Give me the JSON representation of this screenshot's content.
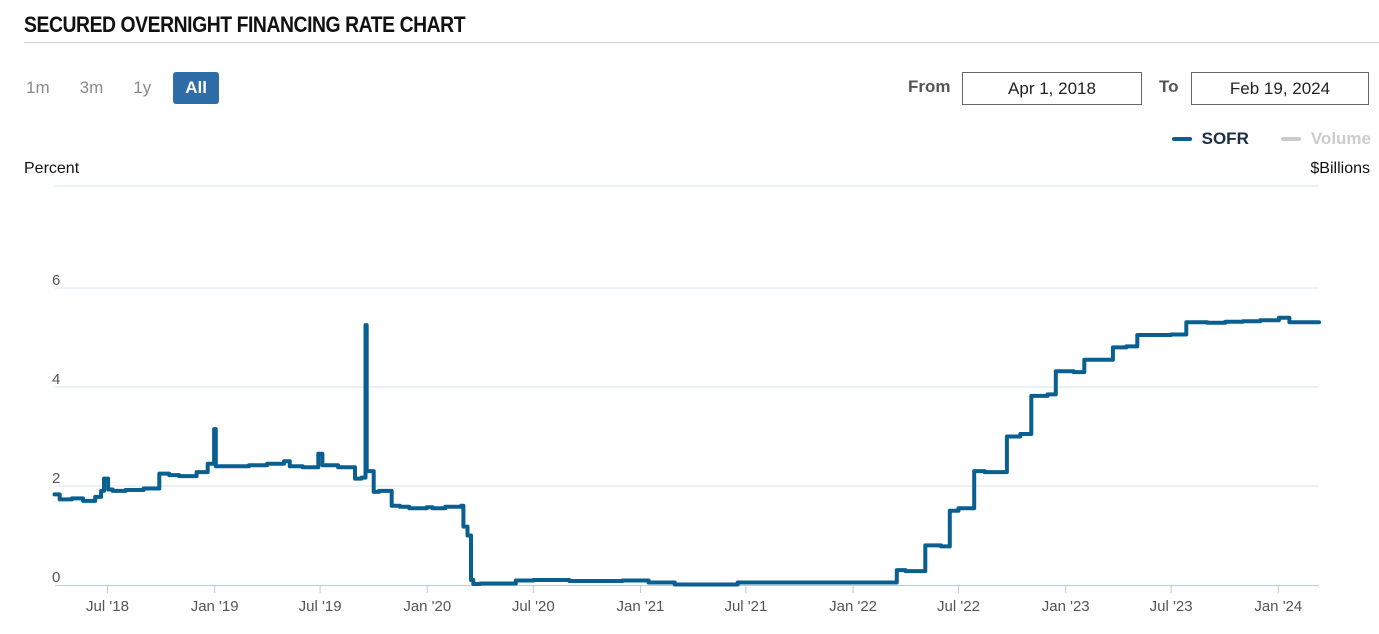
{
  "header": {
    "title": "SECURED OVERNIGHT FINANCING RATE CHART"
  },
  "range_selector": [
    {
      "label": "1m",
      "active": false
    },
    {
      "label": "3m",
      "active": false
    },
    {
      "label": "1y",
      "active": false
    },
    {
      "label": "All",
      "active": true
    }
  ],
  "date_range": {
    "from_label": "From",
    "from_value": "Apr 1, 2018",
    "to_label": "To",
    "to_value": "Feb 19, 2024"
  },
  "legend": [
    {
      "name": "SOFR",
      "color": "#0a5f91",
      "active": true
    },
    {
      "name": "Volume",
      "color": "#cccccc",
      "active": false
    }
  ],
  "colors": {
    "accent": "#2f6da8",
    "line": "#0a5f91",
    "grid": "#d6e3ef"
  },
  "chart_data": {
    "type": "line",
    "ylabel": "Percent",
    "y2label": "$Billions",
    "ylim": [
      0,
      8
    ],
    "yticks": [
      "0",
      "2",
      "4",
      "6"
    ],
    "xlabels": [
      "Jul '18",
      "Jan '19",
      "Jul '19",
      "Jan '20",
      "Jul '20",
      "Jan '21",
      "Jul '21",
      "Jan '22",
      "Jul '22",
      "Jan '23",
      "Jul '23",
      "Jan '24"
    ],
    "grid": true,
    "series": [
      {
        "name": "SOFR",
        "x": [
          "2018-04-01",
          "2018-04-10",
          "2018-05-01",
          "2018-05-20",
          "2018-06-10",
          "2018-06-20",
          "2018-06-25",
          "2018-07-02",
          "2018-07-10",
          "2018-08-01",
          "2018-09-01",
          "2018-09-28",
          "2018-10-15",
          "2018-11-01",
          "2018-12-01",
          "2018-12-20",
          "2018-12-31",
          "2019-01-03",
          "2019-02-01",
          "2019-03-01",
          "2019-04-01",
          "2019-04-30",
          "2019-05-10",
          "2019-06-01",
          "2019-06-28",
          "2019-07-05",
          "2019-08-01",
          "2019-08-30",
          "2019-09-10",
          "2019-09-17",
          "2019-09-19",
          "2019-10-01",
          "2019-10-10",
          "2019-11-01",
          "2019-11-15",
          "2019-12-01",
          "2019-12-31",
          "2020-01-10",
          "2020-02-01",
          "2020-02-28",
          "2020-03-03",
          "2020-03-10",
          "2020-03-16",
          "2020-03-20",
          "2020-04-01",
          "2020-06-01",
          "2020-07-01",
          "2020-09-01",
          "2020-12-01",
          "2021-01-15",
          "2021-03-01",
          "2021-04-01",
          "2021-06-01",
          "2021-06-17",
          "2021-09-01",
          "2021-12-01",
          "2022-03-15",
          "2022-03-17",
          "2022-04-01",
          "2022-05-05",
          "2022-06-01",
          "2022-06-16",
          "2022-07-01",
          "2022-07-28",
          "2022-08-15",
          "2022-09-22",
          "2022-10-15",
          "2022-11-03",
          "2022-12-01",
          "2022-12-15",
          "2023-01-15",
          "2023-02-02",
          "2023-03-01",
          "2023-03-23",
          "2023-04-15",
          "2023-05-04",
          "2023-06-01",
          "2023-07-01",
          "2023-07-27",
          "2023-09-01",
          "2023-10-02",
          "2023-11-01",
          "2023-12-01",
          "2024-01-02",
          "2024-01-20",
          "2024-02-19"
        ],
        "values": [
          1.83,
          1.73,
          1.75,
          1.7,
          1.78,
          1.9,
          2.15,
          1.93,
          1.9,
          1.92,
          1.95,
          2.25,
          2.22,
          2.2,
          2.28,
          2.45,
          3.15,
          2.4,
          2.4,
          2.42,
          2.45,
          2.5,
          2.4,
          2.38,
          2.65,
          2.42,
          2.38,
          2.15,
          2.17,
          5.25,
          2.3,
          1.88,
          1.9,
          1.6,
          1.58,
          1.55,
          1.57,
          1.55,
          1.58,
          1.6,
          1.18,
          1.0,
          0.1,
          0.02,
          0.03,
          0.09,
          0.1,
          0.08,
          0.09,
          0.05,
          0.01,
          0.01,
          0.01,
          0.05,
          0.05,
          0.05,
          0.05,
          0.3,
          0.28,
          0.8,
          0.78,
          1.5,
          1.55,
          2.3,
          2.28,
          3.0,
          3.05,
          3.82,
          3.85,
          4.32,
          4.3,
          4.55,
          4.55,
          4.8,
          4.82,
          5.05,
          5.05,
          5.06,
          5.31,
          5.3,
          5.32,
          5.33,
          5.35,
          5.4,
          5.31,
          5.31
        ]
      }
    ]
  }
}
